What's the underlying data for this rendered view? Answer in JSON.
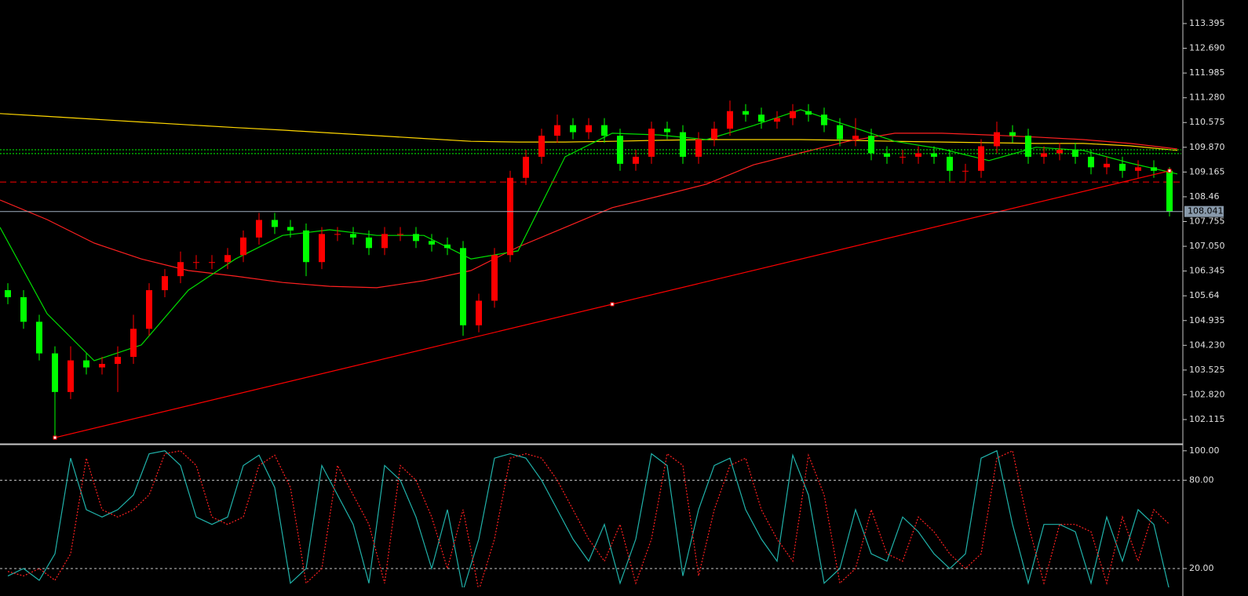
{
  "chart_data": [
    {
      "type": "candlestick",
      "up_color": "#ff0000",
      "down_color": "#00ff00",
      "open": [
        105.8,
        105.6,
        104.9,
        104.0,
        102.9,
        103.8,
        103.6,
        103.7,
        103.9,
        104.7,
        105.8,
        106.2,
        106.6,
        106.6,
        106.6,
        106.8,
        107.3,
        107.8,
        107.6,
        107.5,
        106.6,
        107.4,
        107.4,
        107.3,
        107.0,
        107.4,
        107.4,
        107.2,
        107.1,
        107.0,
        104.8,
        105.5,
        106.8,
        109.0,
        109.6,
        110.2,
        110.5,
        110.3,
        110.5,
        110.2,
        109.4,
        109.6,
        110.4,
        110.3,
        109.6,
        110.1,
        110.4,
        110.9,
        110.8,
        110.6,
        110.7,
        110.9,
        110.8,
        110.5,
        110.1,
        110.2,
        109.7,
        109.6,
        109.6,
        109.7,
        109.6,
        109.2,
        109.2,
        109.9,
        110.3,
        110.2,
        109.6,
        109.7,
        109.8,
        109.6,
        109.3,
        109.4,
        109.2,
        109.3,
        109.2
      ],
      "high": [
        106.0,
        105.8,
        105.1,
        104.2,
        104.2,
        104.0,
        103.9,
        104.2,
        105.1,
        106.0,
        106.4,
        106.9,
        106.8,
        106.8,
        107.0,
        107.5,
        108.0,
        108.0,
        107.8,
        107.7,
        107.6,
        107.6,
        107.6,
        107.5,
        107.6,
        107.6,
        107.6,
        107.4,
        107.3,
        107.2,
        105.7,
        107.0,
        109.2,
        109.8,
        110.4,
        110.8,
        110.7,
        110.7,
        110.7,
        110.4,
        109.8,
        110.6,
        110.6,
        110.5,
        110.3,
        110.6,
        111.2,
        111.1,
        111.0,
        110.9,
        111.1,
        111.1,
        111.0,
        110.7,
        110.7,
        110.4,
        109.9,
        109.8,
        109.9,
        109.9,
        109.8,
        109.4,
        110.1,
        110.6,
        110.5,
        110.4,
        109.9,
        110.0,
        110.0,
        109.8,
        109.6,
        109.6,
        109.5,
        109.5,
        109.3
      ],
      "low": [
        105.4,
        104.7,
        103.8,
        101.6,
        102.7,
        103.4,
        103.4,
        102.9,
        103.7,
        104.5,
        105.6,
        106.0,
        106.4,
        106.4,
        106.4,
        106.6,
        107.1,
        107.4,
        107.3,
        106.2,
        106.4,
        107.2,
        107.1,
        106.8,
        106.8,
        107.2,
        107.0,
        106.9,
        106.8,
        104.5,
        104.6,
        105.3,
        106.6,
        108.8,
        109.4,
        110.0,
        110.1,
        110.1,
        110.0,
        109.2,
        109.2,
        109.4,
        110.1,
        109.4,
        109.4,
        109.9,
        110.2,
        110.6,
        110.4,
        110.4,
        110.5,
        110.6,
        110.3,
        109.9,
        109.9,
        109.5,
        109.4,
        109.4,
        109.4,
        109.4,
        108.9,
        108.9,
        109.0,
        109.7,
        110.0,
        109.4,
        109.4,
        109.5,
        109.4,
        109.1,
        109.1,
        109.0,
        109.0,
        109.0,
        107.9
      ],
      "close": [
        105.6,
        104.9,
        104.0,
        102.9,
        103.8,
        103.6,
        103.7,
        103.9,
        104.7,
        105.8,
        106.2,
        106.6,
        106.6,
        106.6,
        106.8,
        107.3,
        107.8,
        107.6,
        107.5,
        106.6,
        107.4,
        107.4,
        107.3,
        107.0,
        107.4,
        107.4,
        107.2,
        107.1,
        107.0,
        104.8,
        105.5,
        106.8,
        109.0,
        109.6,
        110.2,
        110.5,
        110.3,
        110.5,
        110.2,
        109.4,
        109.6,
        110.4,
        110.3,
        109.6,
        110.1,
        110.4,
        110.9,
        110.8,
        110.6,
        110.7,
        110.9,
        110.8,
        110.5,
        110.1,
        110.2,
        109.7,
        109.6,
        109.6,
        109.7,
        109.6,
        109.2,
        109.2,
        109.9,
        110.3,
        110.2,
        109.6,
        109.7,
        109.8,
        109.6,
        109.3,
        109.4,
        109.2,
        109.3,
        109.2,
        108.04
      ],
      "moving_averages": [
        {
          "color": "#ffd700",
          "values": [
            110.83,
            110.75,
            110.67,
            110.59,
            110.51,
            110.43,
            110.36,
            110.28,
            110.2,
            110.12,
            110.04,
            110.02,
            110.02,
            110.04,
            110.07,
            110.09,
            110.09,
            110.09,
            110.07,
            110.04,
            110.02,
            110.0,
            109.98,
            109.98,
            109.91,
            109.78
          ]
        },
        {
          "color": "#ff2020",
          "values": [
            108.37,
            107.81,
            107.14,
            106.69,
            106.36,
            106.2,
            106.02,
            105.91,
            105.87,
            106.07,
            106.36,
            107.03,
            107.59,
            108.15,
            108.48,
            108.82,
            109.37,
            109.71,
            110.04,
            110.27,
            110.27,
            110.22,
            110.16,
            110.09,
            109.98,
            109.82
          ]
        },
        {
          "color": "#00e000",
          "values": [
            107.59,
            105.13,
            103.79,
            104.24,
            105.8,
            106.69,
            107.36,
            107.52,
            107.36,
            107.36,
            106.69,
            106.92,
            109.6,
            110.27,
            110.22,
            110.09,
            110.49,
            110.94,
            110.49,
            110.04,
            109.82,
            109.49,
            109.87,
            109.78,
            109.42,
            109.11
          ]
        }
      ],
      "hlines": [
        {
          "value": 109.8,
          "color": "#00ff00",
          "style": "dotted"
        },
        {
          "value": 109.69,
          "color": "#00ff00",
          "style": "dotted"
        },
        {
          "value": 108.88,
          "color": "#ff0000",
          "style": "dashed"
        }
      ],
      "trendline": {
        "values": [
          101.6,
          109.2
        ],
        "color": "#ff0000"
      },
      "last_price": 108.041,
      "ylim": [
        101.445,
        114.065
      ],
      "yticks": [
        102.115,
        {
          "value": 102.82,
          "label": "102.820"
        },
        103.525,
        {
          "value": 104.23,
          "label": "104.230"
        },
        104.935,
        105.64,
        106.345,
        {
          "value": 107.05,
          "label": "107.050"
        },
        107.755,
        108.46,
        109.165,
        {
          "value": 109.87,
          "label": "109.870"
        },
        110.575,
        {
          "value": 111.28,
          "label": "111.280"
        },
        111.985,
        {
          "value": 112.69,
          "label": "112.690"
        },
        113.395
      ]
    },
    {
      "type": "line",
      "series": [
        {
          "color": "#20b2aa",
          "style": "solid",
          "values": [
            15,
            20,
            12,
            30,
            95,
            60,
            55,
            60,
            70,
            98,
            100,
            90,
            55,
            50,
            55,
            90,
            97,
            75,
            10,
            20,
            90,
            70,
            50,
            10,
            90,
            80,
            55,
            20,
            60,
            5,
            40,
            95,
            98,
            95,
            80,
            60,
            40,
            25,
            50,
            10,
            40,
            98,
            90,
            15,
            60,
            90,
            95,
            60,
            40,
            25,
            97,
            70,
            10,
            20,
            60,
            30,
            25,
            55,
            45,
            30,
            20,
            30,
            95,
            100,
            50,
            10,
            50,
            50,
            45,
            10,
            55,
            25,
            60,
            50,
            5
          ]
        },
        {
          "color": "#ff2020",
          "style": "dotted",
          "values": [
            18,
            15,
            20,
            12,
            30,
            95,
            60,
            55,
            60,
            70,
            98,
            100,
            90,
            55,
            50,
            55,
            90,
            97,
            75,
            10,
            20,
            90,
            70,
            50,
            10,
            90,
            80,
            55,
            20,
            60,
            5,
            40,
            95,
            98,
            95,
            80,
            60,
            40,
            25,
            50,
            10,
            40,
            98,
            90,
            15,
            60,
            90,
            95,
            60,
            40,
            25,
            97,
            70,
            10,
            20,
            60,
            30,
            25,
            55,
            45,
            30,
            20,
            30,
            95,
            100,
            50,
            10,
            50,
            50,
            45,
            10,
            55,
            25,
            60,
            50
          ]
        }
      ],
      "levels": [
        80,
        20
      ],
      "ylim": [
        7.2,
        103.1
      ],
      "yticks": [
        {
          "value": 100,
          "label": "100.00"
        },
        {
          "value": 80,
          "label": "80.00"
        },
        {
          "value": 20,
          "label": "20.00"
        }
      ]
    }
  ]
}
